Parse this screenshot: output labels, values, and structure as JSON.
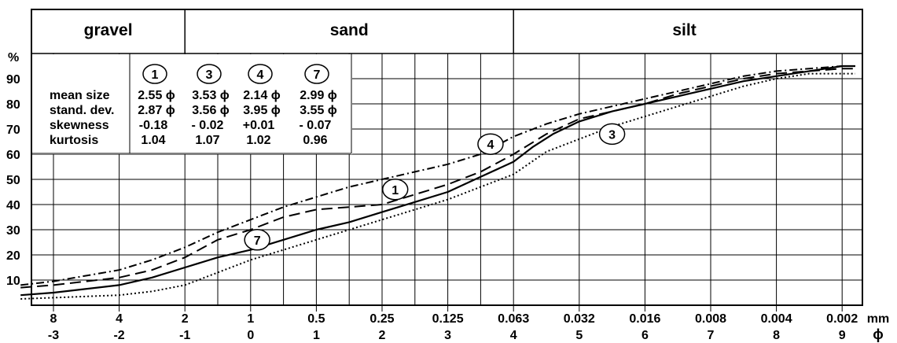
{
  "chart_data": {
    "type": "line",
    "title": "",
    "y_axis": {
      "label": "%",
      "ticks": [
        10,
        20,
        30,
        40,
        50,
        60,
        70,
        80,
        90
      ],
      "ylim": [
        0,
        100
      ]
    },
    "x_axis": {
      "label_mm": "mm",
      "label_phi": "ϕ",
      "xlim_phi": [
        -3.6,
        9.2
      ],
      "mm_ticks": [
        "8",
        "4",
        "2",
        "1",
        "0.5",
        "0.25",
        "0.125",
        "0.063",
        "0.032",
        "0.016",
        "0.008",
        "0.004",
        "0.002"
      ],
      "phi_ticks": [
        "-3",
        "-2",
        "-1",
        "0",
        "1",
        "2",
        "3",
        "4",
        "5",
        "6",
        "7",
        "8",
        "9"
      ]
    },
    "grain_classes": [
      {
        "name": "gravel",
        "from_phi": -3.6,
        "to_phi": -1
      },
      {
        "name": "sand",
        "from_phi": -1,
        "to_phi": 4
      },
      {
        "name": "silt",
        "from_phi": 4,
        "to_phi": 9.2
      }
    ],
    "stats_table": {
      "sample_ids": [
        "1",
        "3",
        "4",
        "7"
      ],
      "rows": [
        {
          "label": "mean size",
          "values": [
            "2.55",
            "3.53",
            "2.14",
            "2.99"
          ],
          "unit": "ϕ"
        },
        {
          "label": "stand. dev.",
          "values": [
            "2.87",
            "3.56",
            "3.95",
            "3.55"
          ],
          "unit": "ϕ"
        },
        {
          "label": "skewness",
          "values": [
            "-0.18",
            "- 0.02",
            "+0.01",
            "- 0.07"
          ],
          "unit": ""
        },
        {
          "label": "kurtosis",
          "values": [
            "1.04",
            "1.07",
            "1.02",
            "0.96"
          ],
          "unit": ""
        }
      ]
    },
    "series": [
      {
        "name": "1",
        "style": "solid",
        "label_at": {
          "x": 2.2,
          "y": 46
        },
        "x": [
          -3.5,
          -3,
          -2,
          -1.5,
          -1,
          -0.5,
          0,
          0.5,
          1,
          1.5,
          2,
          2.5,
          3,
          3.5,
          4,
          4.3,
          4.6,
          5,
          5.5,
          6,
          6.5,
          7,
          7.5,
          8,
          8.5,
          9,
          9.2
        ],
        "y": [
          4,
          5,
          8,
          11,
          15,
          19,
          22,
          26,
          30,
          33,
          37,
          41,
          45,
          51,
          57,
          63,
          68,
          73,
          77,
          80,
          83,
          86,
          89,
          91,
          93,
          95,
          95
        ]
      },
      {
        "name": "3",
        "style": "dotted",
        "label_at": {
          "x": 5.5,
          "y": 68
        },
        "x": [
          -3.5,
          -3,
          -2,
          -1.5,
          -1,
          -0.5,
          0,
          0.5,
          1,
          1.5,
          2,
          2.5,
          3,
          3.5,
          4,
          4.5,
          5,
          5.5,
          6,
          6.5,
          7,
          7.5,
          8,
          8.5,
          9,
          9.2
        ],
        "y": [
          2.5,
          3,
          4,
          5.5,
          8,
          13,
          18,
          22,
          26,
          30,
          34,
          38,
          42,
          47,
          52,
          61,
          66,
          71,
          75,
          79,
          83,
          87,
          90,
          92,
          92,
          92
        ]
      },
      {
        "name": "4",
        "style": "dash-dot",
        "label_at": {
          "x": 3.65,
          "y": 64
        },
        "x": [
          -3.5,
          -3,
          -2,
          -1.5,
          -1,
          -0.5,
          0,
          0.5,
          1,
          1.5,
          2,
          2.5,
          3,
          3.5,
          4,
          4.5,
          5,
          5.5,
          6,
          6.5,
          7,
          7.5,
          8,
          8.5,
          9,
          9.2
        ],
        "y": [
          8,
          9.5,
          14,
          18,
          23,
          29,
          34,
          39,
          43,
          47,
          50,
          53,
          56,
          60,
          67,
          72,
          76,
          79,
          82,
          85,
          88,
          91,
          93,
          94,
          95,
          95
        ]
      },
      {
        "name": "7",
        "style": "dashed",
        "label_at": {
          "x": 0.1,
          "y": 26
        },
        "x": [
          -3.5,
          -3,
          -2,
          -1.5,
          -1,
          -0.5,
          0,
          0.5,
          1,
          1.5,
          2,
          2.5,
          3,
          3.5,
          4,
          4.5,
          5,
          5.5,
          6,
          6.5,
          7,
          7.5,
          8,
          8.5,
          9,
          9.2
        ],
        "y": [
          7,
          8,
          11,
          14,
          19,
          26,
          30,
          35,
          38,
          39,
          40,
          44,
          48,
          53,
          60,
          68,
          74,
          77,
          80,
          84,
          87,
          90,
          92,
          93,
          94,
          94
        ]
      }
    ]
  }
}
